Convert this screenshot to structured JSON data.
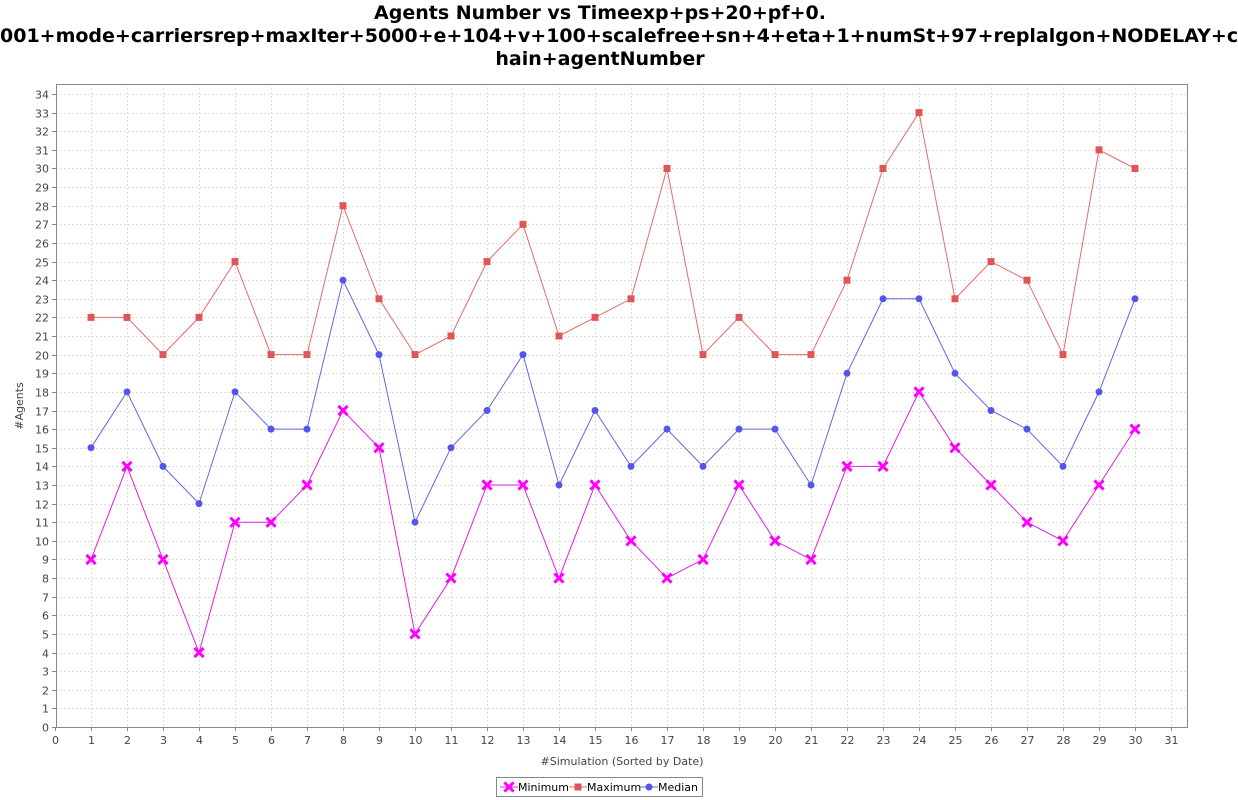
{
  "chart_data": {
    "type": "line",
    "title_lines": [
      "Agents Number vs Timeexp+ps+20+pf+0.",
      "001+mode+carriersrep+maxIter+5000+e+104+v+100+scalefree+sn+4+eta+1+numSt+97+replalgon+NODELAY+c",
      "hain+agentNumber"
    ],
    "xlabel": "#Simulation (Sorted by Date)",
    "ylabel": "#Agents",
    "xlim": [
      0,
      31
    ],
    "ylim": [
      0,
      34
    ],
    "xticks": [
      "0",
      "1",
      "2",
      "3",
      "4",
      "5",
      "6",
      "7",
      "8",
      "9",
      "10",
      "11",
      "12",
      "13",
      "14",
      "15",
      "16",
      "17",
      "18",
      "19",
      "20",
      "21",
      "22",
      "23",
      "24",
      "25",
      "26",
      "27",
      "28",
      "29",
      "30",
      "31"
    ],
    "yticks": [
      "0",
      "1",
      "2",
      "3",
      "4",
      "5",
      "6",
      "7",
      "8",
      "9",
      "10",
      "11",
      "12",
      "13",
      "14",
      "15",
      "16",
      "17",
      "18",
      "19",
      "20",
      "21",
      "22",
      "23",
      "24",
      "25",
      "26",
      "27",
      "28",
      "29",
      "30",
      "31",
      "32",
      "33",
      "34"
    ],
    "grid": true,
    "legend_position": "bottom",
    "x": [
      1,
      2,
      3,
      4,
      5,
      6,
      7,
      8,
      9,
      10,
      11,
      12,
      13,
      14,
      15,
      16,
      17,
      18,
      19,
      20,
      21,
      22,
      23,
      24,
      25,
      26,
      27,
      28,
      29,
      30
    ],
    "series": [
      {
        "name": "Minimum",
        "color": "#ff00ff",
        "line_color": "#e020e0",
        "marker": "x",
        "values": [
          9,
          14,
          9,
          4,
          11,
          11,
          13,
          17,
          15,
          5,
          8,
          13,
          13,
          8,
          13,
          10,
          8,
          9,
          13,
          10,
          9,
          14,
          14,
          18,
          15,
          13,
          11,
          10,
          13,
          16
        ]
      },
      {
        "name": "Maximum",
        "color": "#e05555",
        "line_color": "#e86b6b",
        "marker": "square",
        "values": [
          22,
          22,
          20,
          22,
          25,
          20,
          20,
          28,
          23,
          20,
          21,
          25,
          27,
          21,
          22,
          23,
          30,
          20,
          22,
          20,
          20,
          24,
          30,
          33,
          23,
          25,
          24,
          20,
          31,
          30
        ]
      },
      {
        "name": "Median",
        "color": "#5555ee",
        "line_color": "#6666dd",
        "marker": "circle",
        "values": [
          15,
          18,
          14,
          12,
          18,
          16,
          16,
          24,
          20,
          11,
          15,
          17,
          20,
          13,
          17,
          14,
          16,
          14,
          16,
          16,
          13,
          19,
          23,
          23,
          19,
          17,
          16,
          14,
          18,
          23
        ]
      }
    ]
  }
}
